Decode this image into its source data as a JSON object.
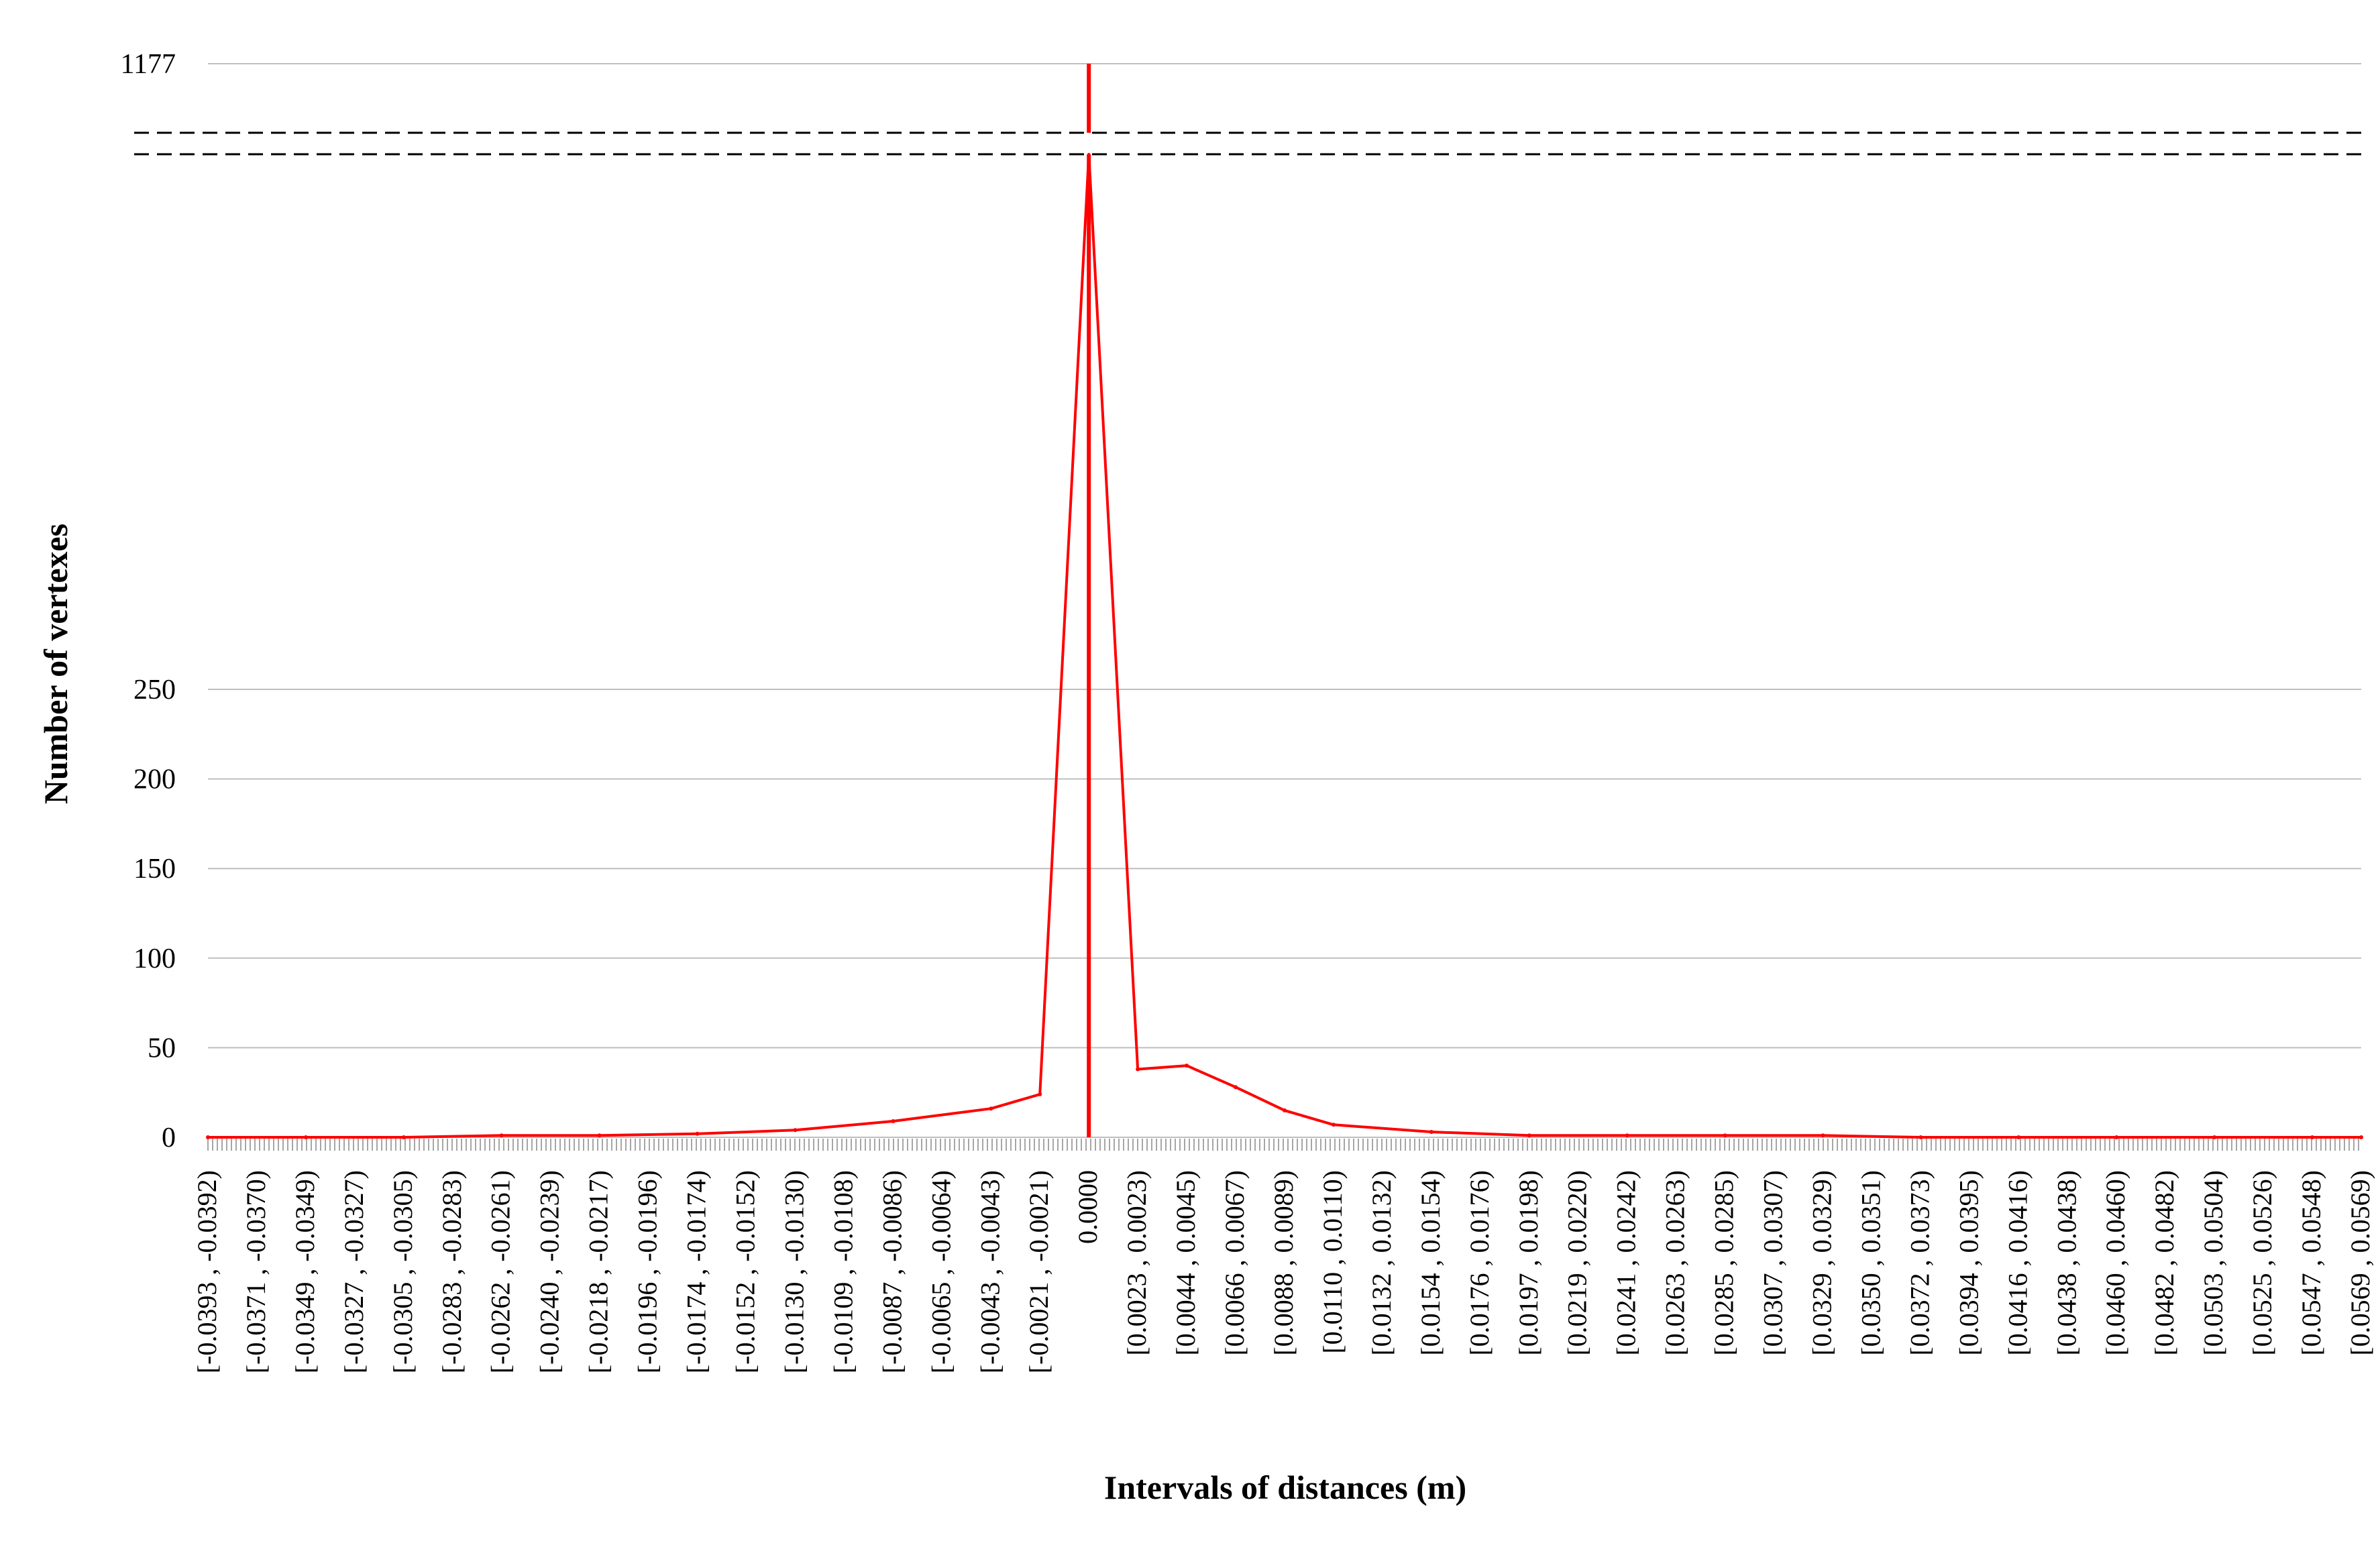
{
  "chart_data": {
    "type": "line",
    "title": "",
    "xlabel": "Intervals of distances (m)",
    "ylabel": "Number of vertexes",
    "y_ticks": [
      "0",
      "50",
      "100",
      "150",
      "200",
      "250",
      "1177"
    ],
    "y_axis_break": {
      "lower_top": 280,
      "upper_value": 1177
    },
    "grid": "horizontal",
    "series_color": "#ff0000",
    "x_tick_labels": [
      "[-0.0393 , -0.0392)",
      "[-0.0371 , -0.0370)",
      "[-0.0349 , -0.0349)",
      "[-0.0327 , -0.0327)",
      "[-0.0305 , -0.0305)",
      "[-0.0283 , -0.0283)",
      "[-0.0262 , -0.0261)",
      "[-0.0240 , -0.0239)",
      "[-0.0218 , -0.0217)",
      "[-0.0196 , -0.0196)",
      "[-0.0174 , -0.0174)",
      "[-0.0152 , -0.0152)",
      "[-0.0130 , -0.0130)",
      "[-0.0109 , -0.0108)",
      "[-0.0087 , -0.0086)",
      "[-0.0065 , -0.0064)",
      "[-0.0043 , -0.0043)",
      "[-0.0021 , -0.0021)",
      "0.0000",
      "[0.0023 , 0.0023)",
      "[0.0044 , 0.0045)",
      "[0.0066 , 0.0067)",
      "[0.0088 , 0.0089)",
      "[0.0110 , 0.0110)",
      "[0.0132 , 0.0132)",
      "[0.0154 , 0.0154)",
      "[0.0176 , 0.0176)",
      "[0.0197 , 0.0198)",
      "[0.0219 , 0.0220)",
      "[0.0241 , 0.0242)",
      "[0.0263 , 0.0263)",
      "[0.0285 , 0.0285)",
      "[0.0307 , 0.0307)",
      "[0.0329 , 0.0329)",
      "[0.0350 , 0.0351)",
      "[0.0372 , 0.0373)",
      "[0.0394 , 0.0395)",
      "[0.0416 , 0.0416)",
      "[0.0438 , 0.0438)",
      "[0.0460 , 0.0460)",
      "[0.0482 , 0.0482)",
      "[0.0503 , 0.0504)",
      "[0.0525 , 0.0526)",
      "[0.0547 , 0.0548)",
      "[0.0569 , 0.0569)"
    ],
    "series": [
      {
        "x": [
          "[-0.0393 , -0.0392)",
          "[-0.0349 , -0.0349)",
          "[-0.0305 , -0.0305)",
          "[-0.0262 , -0.0261)",
          "[-0.0218 , -0.0217)",
          "[-0.0174 , -0.0174)",
          "[-0.0130 , -0.0130)",
          "[-0.0087 , -0.0086)",
          "[-0.0043 , -0.0043)",
          "[-0.0021 , -0.0021)",
          "0.0000",
          "[0.0023 , 0.0023)",
          "[0.0044 , 0.0045)",
          "[0.0066 , 0.0067)",
          "[0.0088 , 0.0089)",
          "[0.0110 , 0.0110)",
          "[0.0154 , 0.0154)",
          "[0.0197 , 0.0198)",
          "[0.0241 , 0.0242)",
          "[0.0285 , 0.0285)",
          "[0.0329 , 0.0329)",
          "[0.0372 , 0.0373)",
          "[0.0416 , 0.0416)",
          "[0.0460 , 0.0460)",
          "[0.0503 , 0.0504)",
          "[0.0547 , 0.0548)",
          "[0.0569 , 0.0569)"
        ],
        "y": [
          0,
          0,
          0,
          1,
          1,
          2,
          4,
          9,
          16,
          24,
          1177,
          38,
          40,
          28,
          15,
          7,
          3,
          1,
          1,
          1,
          1,
          0,
          0,
          0,
          0,
          0,
          0
        ]
      }
    ]
  }
}
